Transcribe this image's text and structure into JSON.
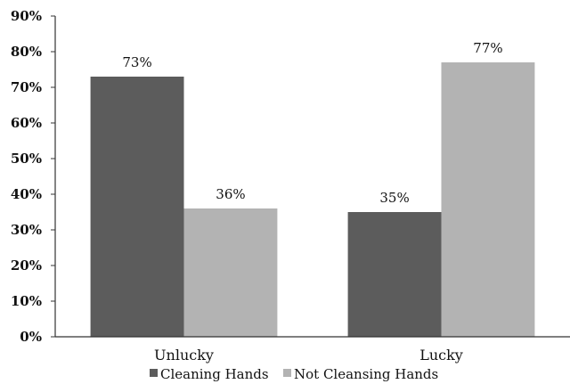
{
  "chart_data": {
    "type": "bar",
    "categories": [
      "Unlucky",
      "Lucky"
    ],
    "series": [
      {
        "name": "Cleaning Hands",
        "values": [
          73,
          35
        ],
        "labels": [
          "73%",
          "35%"
        ],
        "color": "#5c5c5c"
      },
      {
        "name": "Not Cleansing Hands",
        "values": [
          36,
          77
        ],
        "labels": [
          "36%",
          "77%"
        ],
        "color": "#b3b3b3"
      }
    ],
    "yticks": [
      "0%",
      "10%",
      "20%",
      "30%",
      "40%",
      "50%",
      "60%",
      "70%",
      "80%",
      "90%"
    ],
    "ylim": [
      0,
      90
    ],
    "grid": false,
    "legend_position": "bottom",
    "title": "",
    "xlabel": "",
    "ylabel": ""
  }
}
